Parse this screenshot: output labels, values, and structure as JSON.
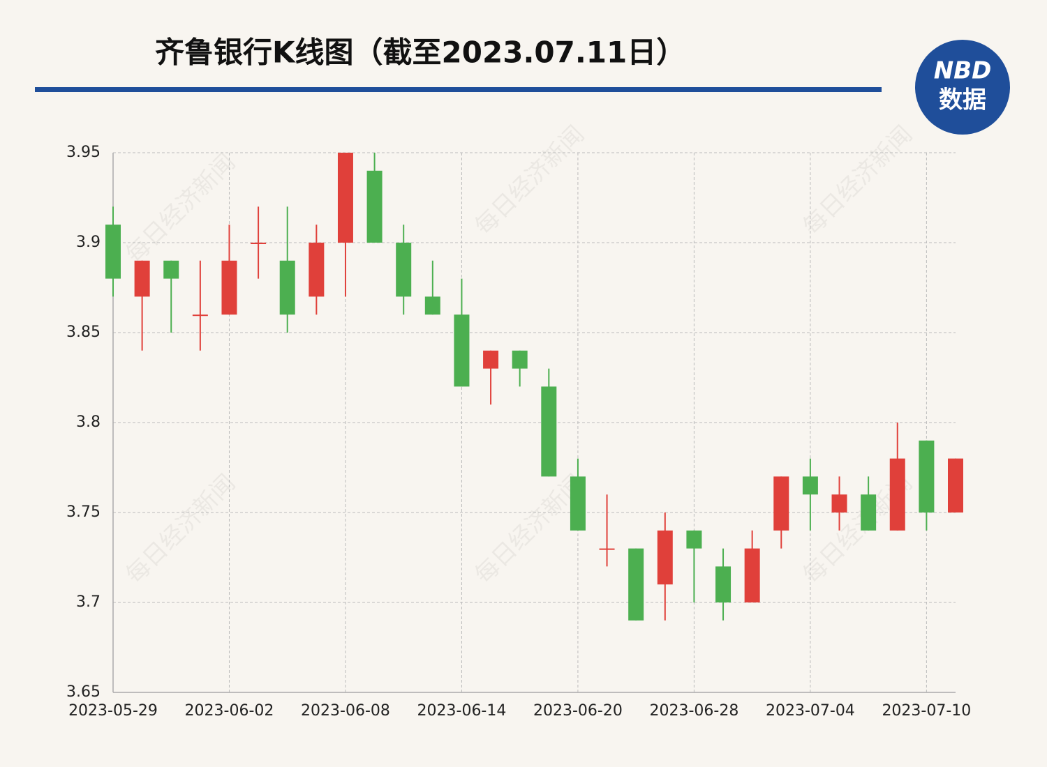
{
  "chart_data": {
    "type": "candlestick",
    "title": "齐鲁银行K线图（截至2023.07.11日）",
    "logo": {
      "top": "NBD",
      "bottom": "数据"
    },
    "watermark": "每日经济新闻",
    "categories": [
      "2023-05-29",
      null,
      null,
      null,
      "2023-06-02",
      null,
      null,
      null,
      "2023-06-08",
      null,
      null,
      null,
      "2023-06-14",
      null,
      null,
      null,
      "2023-06-20",
      null,
      null,
      null,
      "2023-06-28",
      null,
      null,
      null,
      "2023-07-04",
      null,
      null,
      null,
      "2023-07-10",
      null
    ],
    "series": [
      {
        "up_color": "#e0403a",
        "down_color": "#4caf50",
        "open": [
          3.91,
          3.87,
          3.89,
          3.86,
          3.86,
          3.9,
          3.89,
          3.87,
          3.9,
          3.94,
          3.9,
          3.87,
          3.86,
          3.83,
          3.84,
          3.82,
          3.77,
          3.73,
          3.73,
          3.71,
          3.74,
          3.72,
          3.7,
          3.74,
          3.77,
          3.75,
          3.76,
          3.74,
          3.79,
          3.75
        ],
        "high": [
          3.92,
          3.89,
          3.89,
          3.89,
          3.91,
          3.92,
          3.92,
          3.91,
          3.95,
          3.95,
          3.91,
          3.89,
          3.88,
          3.84,
          3.84,
          3.83,
          3.78,
          3.76,
          3.73,
          3.75,
          3.74,
          3.73,
          3.74,
          3.77,
          3.78,
          3.77,
          3.77,
          3.8,
          3.79,
          3.78
        ],
        "low": [
          3.87,
          3.84,
          3.85,
          3.84,
          3.86,
          3.88,
          3.85,
          3.86,
          3.87,
          3.9,
          3.86,
          3.86,
          3.82,
          3.81,
          3.82,
          3.77,
          3.74,
          3.72,
          3.69,
          3.69,
          3.7,
          3.69,
          3.7,
          3.73,
          3.74,
          3.74,
          3.74,
          3.74,
          3.74,
          3.75
        ],
        "close": [
          3.88,
          3.89,
          3.88,
          3.86,
          3.89,
          3.9,
          3.86,
          3.9,
          3.95,
          3.9,
          3.87,
          3.86,
          3.82,
          3.84,
          3.83,
          3.77,
          3.74,
          3.73,
          3.69,
          3.74,
          3.73,
          3.7,
          3.73,
          3.77,
          3.76,
          3.76,
          3.74,
          3.78,
          3.75,
          3.78
        ]
      }
    ],
    "ylim": [
      3.65,
      3.95
    ],
    "yticks": [
      3.65,
      3.7,
      3.75,
      3.8,
      3.85,
      3.9,
      3.95
    ],
    "grid": true
  }
}
